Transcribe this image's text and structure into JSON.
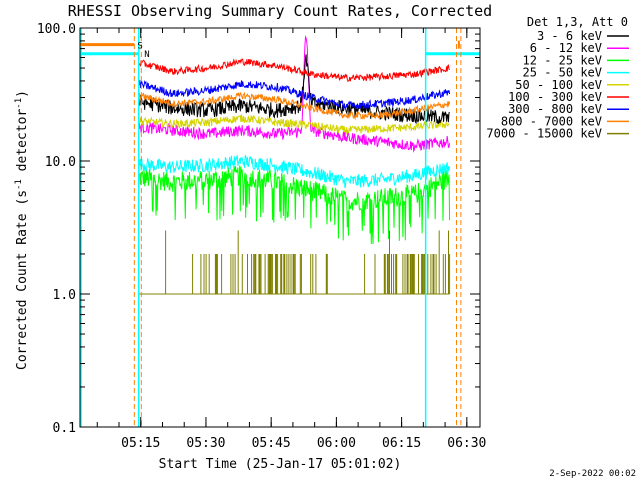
{
  "chart_data": {
    "type": "line",
    "title": "RHESSI Observing Summary Count Rates, Corrected",
    "xlabel": "Start Time (25-Jan-17 05:01:02)",
    "ylabel": "Corrected Count Rate (s",
    "ylabel_sup1": "-1",
    "ylabel_mid": " detector",
    "ylabel_sup2": "-1",
    "ylabel_end": ")",
    "yscale": "log",
    "ylim": [
      0.1,
      100
    ],
    "xlim_minutes": [
      0,
      92
    ],
    "yticks": [
      {
        "v": 100,
        "label": "100.0"
      },
      {
        "v": 10,
        "label": "10.0"
      },
      {
        "v": 1,
        "label": "1.0"
      },
      {
        "v": 0.1,
        "label": "0.1"
      }
    ],
    "xticks": [
      {
        "m": 13.97,
        "label": "05:15"
      },
      {
        "m": 28.97,
        "label": "05:30"
      },
      {
        "m": 43.97,
        "label": "05:45"
      },
      {
        "m": 58.97,
        "label": "06:00"
      },
      {
        "m": 73.97,
        "label": "06:15"
      },
      {
        "m": 88.97,
        "label": "06:30"
      }
    ],
    "legend_header": "Det 1,3, Att 0",
    "legend_position": "right",
    "footer_date": "2-Sep-2022 00:02",
    "data_span_minutes": [
      13.5,
      85.0
    ],
    "series": [
      {
        "name": "3 - 6 keV",
        "color": "#000000",
        "values": [
          28,
          25,
          24,
          26,
          24,
          27,
          25,
          23,
          22,
          21
        ]
      },
      {
        "name": "6 - 12 keV",
        "color": "#ff00ff",
        "values": [
          18,
          17,
          16,
          17,
          16,
          17,
          15,
          14,
          13,
          14
        ]
      },
      {
        "name": "12 - 25 keV",
        "color": "#00ff00",
        "values": [
          7.5,
          7.0,
          7.2,
          7.8,
          7.0,
          6.0,
          5.0,
          5.2,
          5.6,
          7.5
        ]
      },
      {
        "name": "25 - 50 keV",
        "color": "#00ffff",
        "values": [
          9.5,
          9.0,
          9.3,
          10.0,
          9.2,
          8.2,
          7.0,
          7.2,
          7.8,
          9.0
        ]
      },
      {
        "name": "50 - 100 keV",
        "color": "#d4d400",
        "values": [
          20,
          19,
          19.5,
          21,
          19.5,
          18.5,
          17,
          17.5,
          18,
          19
        ]
      },
      {
        "name": "100 - 300 keV",
        "color": "#ff0000",
        "values": [
          55,
          47,
          50,
          56,
          52,
          45,
          42,
          43,
          45,
          50
        ]
      },
      {
        "name": "300 - 800 keV",
        "color": "#0000ff",
        "values": [
          38,
          32,
          34,
          38,
          36,
          30,
          26,
          27,
          29,
          33
        ]
      },
      {
        "name": "800 - 7000 keV",
        "color": "#ff8000",
        "values": [
          31,
          27,
          28,
          31,
          29,
          25,
          22,
          22,
          24,
          27
        ]
      },
      {
        "name": "7000 - 15000 keV",
        "color": "#808000",
        "values": [
          1,
          1,
          1.1,
          1.3,
          1.4,
          1.1,
          1,
          1.2,
          1.3,
          1.4
        ]
      }
    ],
    "annotations": {
      "s_label": "S",
      "n_label": "N",
      "saa_intervals_minutes": [
        [
          -5,
          13.5
        ],
        [
          79.5,
          92
        ]
      ],
      "night_boundaries_minutes": [
        12.5,
        14.1,
        86.6,
        87.6
      ],
      "saa_flag_value": 64,
      "night_flag_value": 75,
      "flare_peak_minutes": 52,
      "flare_peak_value": 90
    }
  }
}
